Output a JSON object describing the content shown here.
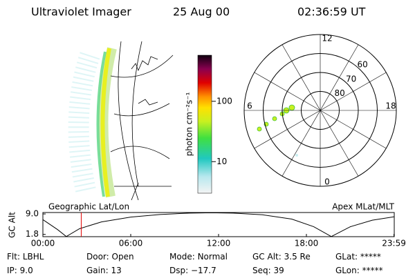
{
  "header": {
    "title": "Ultraviolet Imager",
    "date": "25 Aug 00",
    "time": "02:36:59 UT"
  },
  "colorbar": {
    "label": "photon cm⁻²s⁻¹",
    "log": true,
    "clim": [
      3,
      580
    ],
    "ticks": [
      10,
      100
    ]
  },
  "polar": {
    "rlim": [
      90,
      50
    ],
    "lat_rings": [
      80,
      70,
      60
    ],
    "mlt_labels": [
      12,
      6,
      0,
      18
    ]
  },
  "chart_data": {
    "type": "line",
    "left_label": "Geographic Lat/Lon",
    "right_label": "Apex MLat/MLT",
    "ylabel": "GC Alt",
    "x": [
      0,
      1,
      1.6,
      2.5,
      4,
      6,
      8,
      10,
      11.5,
      13,
      15,
      17,
      18.5,
      19.7,
      21,
      22.5,
      24
    ],
    "series": [
      {
        "color": "#000000",
        "values": [
          7.0,
          3.5,
          1.05,
          3.8,
          6.2,
          7.9,
          8.8,
          9.3,
          9.4,
          9.3,
          8.7,
          7.2,
          4.5,
          1.05,
          4.5,
          6.8,
          8.0
        ]
      }
    ],
    "current_time": 2.62,
    "current_color": "#e00000",
    "xlim": [
      0,
      24
    ],
    "xticks": [
      {
        "value": 0,
        "label": "00:00"
      },
      {
        "value": 6,
        "label": "06:00"
      },
      {
        "value": 12,
        "label": "12:00"
      },
      {
        "value": 18,
        "label": "18:00"
      },
      {
        "value": 23.98,
        "label": "23:59"
      }
    ],
    "ylim": [
      1.0,
      9.5
    ],
    "yticks": [
      {
        "value": 9.0,
        "label": "9.0"
      },
      {
        "value": 1.8,
        "label": "1.8"
      }
    ]
  },
  "footer": [
    [
      {
        "label": "Flt:",
        "value": "LBHL"
      },
      {
        "label": "Door:",
        "value": "Open"
      },
      {
        "label": "Mode:",
        "value": "Normal"
      },
      {
        "label": "GC Alt:",
        "value": "3.5 Re"
      },
      {
        "label": "GLat:",
        "value": "*****"
      }
    ],
    [
      {
        "label": "IP:",
        "value": "9.0"
      },
      {
        "label": "Gain:",
        "value": "13"
      },
      {
        "label": "Dsp:",
        "value": "−17.7"
      },
      {
        "label": "Seq:",
        "value": "39"
      },
      {
        "label": "GLon:",
        "value": "*****"
      }
    ]
  ]
}
